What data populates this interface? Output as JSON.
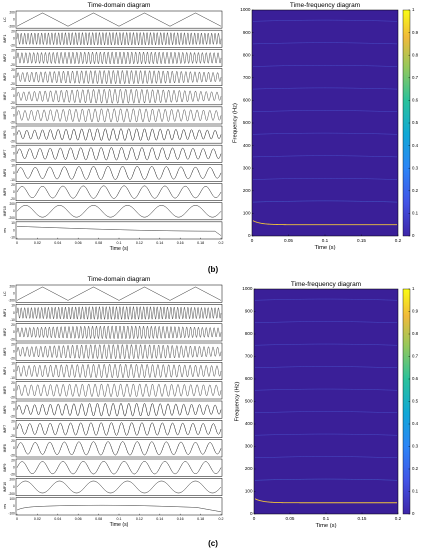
{
  "panels": [
    {
      "label": "(b)",
      "time_domain": {
        "title": "Time-domain diagram",
        "xlabel": "Time (s)",
        "xticks": [
          "0",
          "0.02",
          "0.04",
          "0.06",
          "0.08",
          "0.1",
          "0.12",
          "0.14",
          "0.16",
          "0.18",
          "0.2"
        ],
        "rows": [
          {
            "name": "LC",
            "yticks": [
              "200",
              "0",
              "-200"
            ],
            "cycles": 4,
            "kind": "tri"
          },
          {
            "name": "IMF1",
            "yticks": [
              "20",
              "0",
              "-20"
            ],
            "cycles": 60,
            "kind": "sin",
            "env": [
              0.75,
              0.85
            ]
          },
          {
            "name": "IMF2",
            "yticks": [
              "20",
              "0",
              "-20"
            ],
            "cycles": 52,
            "kind": "sin",
            "env": [
              0.7,
              0.8
            ]
          },
          {
            "name": "IMF3",
            "yticks": [
              "20",
              "0",
              "-20"
            ],
            "cycles": 45,
            "kind": "sin",
            "env": [
              0.6,
              0.9
            ]
          },
          {
            "name": "IMF4",
            "yticks": [
              "20",
              "0",
              "-20"
            ],
            "cycles": 38,
            "kind": "sin",
            "env": [
              0.55,
              0.95
            ]
          },
          {
            "name": "IMF5",
            "yticks": [
              "20",
              "0",
              "-20"
            ],
            "cycles": 32,
            "kind": "sin",
            "env": [
              0.65,
              0.9
            ]
          },
          {
            "name": "IMF6",
            "yticks": [
              "20",
              "0",
              "-20"
            ],
            "cycles": 26,
            "kind": "sin",
            "env": [
              0.55,
              0.8
            ]
          },
          {
            "name": "IMF7",
            "yticks": [
              "20",
              "0",
              "-20"
            ],
            "cycles": 20,
            "kind": "sin",
            "env": [
              0.65,
              0.85
            ]
          },
          {
            "name": "IMF8",
            "yticks": [
              "10",
              "0",
              "-10"
            ],
            "cycles": 14,
            "kind": "sin",
            "env": [
              0.7,
              0.9
            ]
          },
          {
            "name": "IMF9",
            "yticks": [
              "20",
              "0",
              "-20"
            ],
            "cycles": 10,
            "kind": "sin",
            "env": [
              0.75,
              0.85
            ]
          },
          {
            "name": "IMF10",
            "yticks": [
              "200",
              "0",
              "-200"
            ],
            "cycles": 6,
            "kind": "sin",
            "env": [
              0.8,
              0.8
            ]
          },
          {
            "name": "res",
            "yticks": [
              "10",
              "0",
              "-10"
            ],
            "cycles": 0,
            "kind": "res"
          }
        ]
      },
      "time_frequency": {
        "title": "Time-frequency diagram",
        "xlabel": "Time (s)",
        "ylabel": "Frequency (Hz)",
        "xticks": [
          "0",
          "0.05",
          "0.1",
          "0.15",
          "0.2"
        ],
        "yticks": [
          "0",
          "100",
          "200",
          "300",
          "400",
          "500",
          "600",
          "700",
          "800",
          "900",
          "1000"
        ],
        "colorbar_ticks": [
          "0",
          "0.1",
          "0.2",
          "0.3",
          "0.4",
          "0.5",
          "0.6",
          "0.7",
          "0.8",
          "0.9",
          "1"
        ],
        "background_color": "#3a1f98",
        "lines_hz": [
          50,
          150,
          250,
          350,
          450,
          550,
          650,
          750,
          850,
          950
        ]
      }
    },
    {
      "label": "(c)",
      "time_domain": {
        "title": "Time-domain diagram",
        "xlabel": "Time (s)",
        "xticks": [
          "0",
          "0.02",
          "0.04",
          "0.06",
          "0.08",
          "0.1",
          "0.12",
          "0.14",
          "0.16",
          "0.18",
          "0.2"
        ],
        "rows": [
          {
            "name": "LC",
            "yticks": [
              "200",
              "0",
              "-200"
            ],
            "cycles": 4,
            "kind": "tri"
          },
          {
            "name": "IMF1",
            "yticks": [
              "10",
              "0",
              "-10"
            ],
            "cycles": 60,
            "kind": "sin",
            "env": [
              0.7,
              0.85
            ]
          },
          {
            "name": "IMF2",
            "yticks": [
              "20",
              "0",
              "-20"
            ],
            "cycles": 52,
            "kind": "sin",
            "env": [
              0.6,
              0.85
            ]
          },
          {
            "name": "IMF3",
            "yticks": [
              "20",
              "0",
              "-20"
            ],
            "cycles": 45,
            "kind": "sin",
            "env": [
              0.6,
              0.95
            ]
          },
          {
            "name": "IMF4",
            "yticks": [
              "10",
              "0",
              "-10"
            ],
            "cycles": 38,
            "kind": "sin",
            "env": [
              0.7,
              0.9
            ]
          },
          {
            "name": "IMF5",
            "yticks": [
              "20",
              "0",
              "-20"
            ],
            "cycles": 32,
            "kind": "sin",
            "env": [
              0.7,
              0.85
            ]
          },
          {
            "name": "IMF6",
            "yticks": [
              "20",
              "0",
              "-20"
            ],
            "cycles": 26,
            "kind": "sin",
            "env": [
              0.6,
              0.85
            ]
          },
          {
            "name": "IMF7",
            "yticks": [
              "20",
              "0",
              "-20"
            ],
            "cycles": 20,
            "kind": "sin",
            "env": [
              0.7,
              0.85
            ]
          },
          {
            "name": "IMF8",
            "yticks": [
              "20",
              "0",
              "-20"
            ],
            "cycles": 14,
            "kind": "sin",
            "env": [
              0.75,
              0.9
            ]
          },
          {
            "name": "IMF9",
            "yticks": [
              "20",
              "0",
              "-20"
            ],
            "cycles": 10,
            "kind": "sin",
            "env": [
              0.8,
              0.85
            ]
          },
          {
            "name": "IMF10",
            "yticks": [
              "200",
              "0",
              "-200"
            ],
            "cycles": 6,
            "kind": "sin",
            "env": [
              0.8,
              0.8
            ]
          },
          {
            "name": "res",
            "yticks": [
              "100",
              "0",
              "-100"
            ],
            "cycles": 0,
            "kind": "res2"
          }
        ]
      },
      "time_frequency": {
        "title": "Time-frequency diagram",
        "xlabel": "Time (s)",
        "ylabel": "Frequency (Hz)",
        "xticks": [
          "0",
          "0.05",
          "0.1",
          "0.15",
          "0.2"
        ],
        "yticks": [
          "0",
          "100",
          "200",
          "300",
          "400",
          "500",
          "600",
          "700",
          "800",
          "900",
          "1000"
        ],
        "colorbar_ticks": [
          "0",
          "0.1",
          "0.2",
          "0.3",
          "0.4",
          "0.5",
          "0.6",
          "0.7",
          "0.8",
          "0.9",
          "1"
        ],
        "background_color": "#3a1f98",
        "lines_hz": [
          50,
          150,
          250,
          350,
          450,
          550,
          650,
          750,
          850,
          950
        ]
      }
    }
  ],
  "chart_data": [
    {
      "type": "line",
      "title": "Time-domain diagram",
      "xlabel": "Time (s)",
      "xlim": [
        0,
        0.2
      ],
      "series": [
        {
          "name": "LC",
          "ylim": [
            -200,
            200
          ]
        },
        {
          "name": "IMF1",
          "ylim": [
            -20,
            20
          ]
        },
        {
          "name": "IMF2",
          "ylim": [
            -20,
            20
          ]
        },
        {
          "name": "IMF3",
          "ylim": [
            -20,
            20
          ]
        },
        {
          "name": "IMF4",
          "ylim": [
            -20,
            20
          ]
        },
        {
          "name": "IMF5",
          "ylim": [
            -20,
            20
          ]
        },
        {
          "name": "IMF6",
          "ylim": [
            -20,
            20
          ]
        },
        {
          "name": "IMF7",
          "ylim": [
            -20,
            20
          ]
        },
        {
          "name": "IMF8",
          "ylim": [
            -10,
            10
          ]
        },
        {
          "name": "IMF9",
          "ylim": [
            -20,
            20
          ]
        },
        {
          "name": "IMF10",
          "ylim": [
            -200,
            200
          ]
        },
        {
          "name": "res",
          "ylim": [
            -10,
            10
          ]
        }
      ]
    },
    {
      "type": "heatmap",
      "title": "Time-frequency diagram",
      "xlabel": "Time (s)",
      "ylabel": "Frequency (Hz)",
      "xlim": [
        0,
        0.2
      ],
      "ylim": [
        0,
        1000
      ],
      "colorbar_range": [
        0,
        1
      ],
      "ridge_frequencies_hz": [
        50,
        150,
        250,
        350,
        450,
        550,
        650,
        750,
        850,
        950
      ],
      "dominant_ridge_hz": 50
    },
    {
      "type": "line",
      "title": "Time-domain diagram",
      "xlabel": "Time (s)",
      "xlim": [
        0,
        0.2
      ],
      "series": [
        {
          "name": "LC",
          "ylim": [
            -200,
            200
          ]
        },
        {
          "name": "IMF1",
          "ylim": [
            -10,
            10
          ]
        },
        {
          "name": "IMF2",
          "ylim": [
            -20,
            20
          ]
        },
        {
          "name": "IMF3",
          "ylim": [
            -20,
            20
          ]
        },
        {
          "name": "IMF4",
          "ylim": [
            -10,
            10
          ]
        },
        {
          "name": "IMF5",
          "ylim": [
            -20,
            20
          ]
        },
        {
          "name": "IMF6",
          "ylim": [
            -20,
            20
          ]
        },
        {
          "name": "IMF7",
          "ylim": [
            -20,
            20
          ]
        },
        {
          "name": "IMF8",
          "ylim": [
            -20,
            20
          ]
        },
        {
          "name": "IMF9",
          "ylim": [
            -20,
            20
          ]
        },
        {
          "name": "IMF10",
          "ylim": [
            -200,
            200
          ]
        },
        {
          "name": "res",
          "ylim": [
            -100,
            100
          ]
        }
      ]
    },
    {
      "type": "heatmap",
      "title": "Time-frequency diagram",
      "xlabel": "Time (s)",
      "ylabel": "Frequency (Hz)",
      "xlim": [
        0,
        0.2
      ],
      "ylim": [
        0,
        1000
      ],
      "colorbar_range": [
        0,
        1
      ],
      "ridge_frequencies_hz": [
        50,
        150,
        250,
        350,
        450,
        550,
        650,
        750,
        850,
        950
      ],
      "dominant_ridge_hz": 50
    }
  ]
}
